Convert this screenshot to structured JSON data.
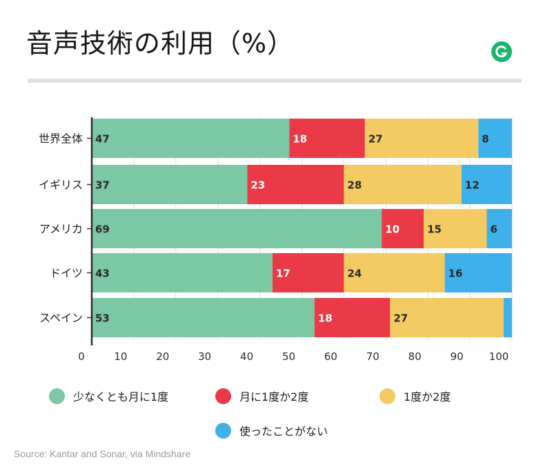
{
  "page": {
    "title": "音声技術の利用（%）",
    "source": "Source: Kantar and Sonar, via Mindshare"
  },
  "logo": {
    "icon": "grammarly-g-icon",
    "color": "#16b66f"
  },
  "chart_data": {
    "type": "bar",
    "orientation": "horizontal",
    "stacked": true,
    "title": "音声技術の利用（%）",
    "categories": [
      "世界全体",
      "イギリス",
      "アメリカ",
      "ドイツ",
      "スペイン"
    ],
    "series": [
      {
        "name": "少なくとも月に1度",
        "color": "#7cc7a4",
        "values": [
          47,
          37,
          69,
          43,
          53
        ]
      },
      {
        "name": "月に1度か2度",
        "color": "#ea3a47",
        "values": [
          18,
          23,
          10,
          17,
          18
        ]
      },
      {
        "name": "1度か2度",
        "color": "#f4ca63",
        "values": [
          27,
          28,
          15,
          24,
          27
        ]
      },
      {
        "name": "使ったことがない",
        "color": "#3eb1ea",
        "values": [
          8,
          12,
          6,
          16,
          2
        ]
      }
    ],
    "data_labels": [
      [
        "47",
        "18",
        "27",
        "8"
      ],
      [
        "37",
        "23",
        "28",
        "12"
      ],
      [
        "69",
        "10",
        "15",
        "6"
      ],
      [
        "43",
        "17",
        "24",
        "16"
      ],
      [
        "53",
        "18",
        "27",
        ""
      ]
    ],
    "x_ticks": [
      0,
      10,
      20,
      30,
      40,
      50,
      60,
      70,
      80,
      90,
      100
    ],
    "xlim": [
      0,
      100
    ],
    "xlabel": "",
    "ylabel": "",
    "grid": true,
    "legend_position": "bottom"
  }
}
